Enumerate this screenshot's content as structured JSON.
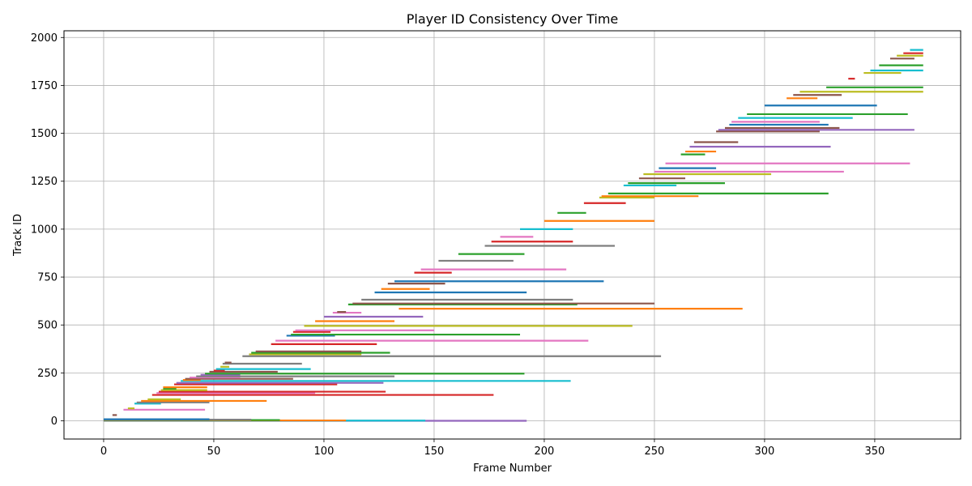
{
  "chart_data": {
    "type": "gantt",
    "title": "Player ID Consistency Over Time",
    "xlabel": "Frame Number",
    "ylabel": "Track ID",
    "xlim": [
      -18,
      389
    ],
    "ylim": [
      -95,
      2035
    ],
    "xticks": [
      0,
      50,
      100,
      150,
      200,
      250,
      300,
      350
    ],
    "yticks": [
      0,
      250,
      500,
      750,
      1000,
      1250,
      1500,
      1750,
      2000
    ],
    "grid": true,
    "colors": [
      "#1f77b4",
      "#ff7f0e",
      "#2ca02c",
      "#d62728",
      "#9467bd",
      "#8c564b",
      "#e377c2",
      "#7f7f7f",
      "#bcbd22",
      "#17becf"
    ],
    "segments": [
      {
        "id": 0,
        "start": 0,
        "end": 192,
        "color": "#9467bd"
      },
      {
        "id": 1,
        "start": 0,
        "end": 146,
        "color": "#17becf"
      },
      {
        "id": 2,
        "start": 0,
        "end": 110,
        "color": "#ff7f0e"
      },
      {
        "id": 4,
        "start": 0,
        "end": 80,
        "color": "#2ca02c"
      },
      {
        "id": 6,
        "start": 0,
        "end": 67,
        "color": "#7f7f7f"
      },
      {
        "id": 8,
        "start": 0,
        "end": 48,
        "color": "#1f77b4"
      },
      {
        "id": 30,
        "start": 4,
        "end": 6,
        "color": "#8c564b"
      },
      {
        "id": 58,
        "start": 9,
        "end": 46,
        "color": "#e377c2"
      },
      {
        "id": 65,
        "start": 11,
        "end": 14,
        "color": "#bcbd22"
      },
      {
        "id": 90,
        "start": 14,
        "end": 26,
        "color": "#17becf"
      },
      {
        "id": 96,
        "start": 15,
        "end": 48,
        "color": "#7f7f7f"
      },
      {
        "id": 104,
        "start": 17,
        "end": 74,
        "color": "#ff7f0e"
      },
      {
        "id": 112,
        "start": 20,
        "end": 35,
        "color": "#bcbd22"
      },
      {
        "id": 135,
        "start": 22,
        "end": 177,
        "color": "#d62728"
      },
      {
        "id": 145,
        "start": 24,
        "end": 96,
        "color": "#e377c2"
      },
      {
        "id": 152,
        "start": 25,
        "end": 128,
        "color": "#d62728"
      },
      {
        "id": 160,
        "start": 26,
        "end": 47,
        "color": "#bcbd22"
      },
      {
        "id": 168,
        "start": 27,
        "end": 33,
        "color": "#2ca02c"
      },
      {
        "id": 175,
        "start": 27,
        "end": 47,
        "color": "#ff7f0e"
      },
      {
        "id": 190,
        "start": 32,
        "end": 106,
        "color": "#d62728"
      },
      {
        "id": 198,
        "start": 33,
        "end": 127,
        "color": "#9467bd"
      },
      {
        "id": 208,
        "start": 35,
        "end": 212,
        "color": "#17becf"
      },
      {
        "id": 213,
        "start": 36,
        "end": 44,
        "color": "#ff7f0e"
      },
      {
        "id": 219,
        "start": 37,
        "end": 86,
        "color": "#8c564b"
      },
      {
        "id": 226,
        "start": 39,
        "end": 62,
        "color": "#e377c2"
      },
      {
        "id": 232,
        "start": 42,
        "end": 132,
        "color": "#7f7f7f"
      },
      {
        "id": 240,
        "start": 44,
        "end": 62,
        "color": "#9467bd"
      },
      {
        "id": 246,
        "start": 46,
        "end": 191,
        "color": "#2ca02c"
      },
      {
        "id": 256,
        "start": 48,
        "end": 79,
        "color": "#8c564b"
      },
      {
        "id": 262,
        "start": 50,
        "end": 55,
        "color": "#d62728"
      },
      {
        "id": 270,
        "start": 51,
        "end": 94,
        "color": "#17becf"
      },
      {
        "id": 282,
        "start": 53,
        "end": 57,
        "color": "#bcbd22"
      },
      {
        "id": 298,
        "start": 54,
        "end": 90,
        "color": "#7f7f7f"
      },
      {
        "id": 304,
        "start": 55,
        "end": 58,
        "color": "#8c564b"
      },
      {
        "id": 337,
        "start": 63,
        "end": 253,
        "color": "#7f7f7f"
      },
      {
        "id": 347,
        "start": 66,
        "end": 117,
        "color": "#bcbd22"
      },
      {
        "id": 355,
        "start": 67,
        "end": 130,
        "color": "#2ca02c"
      },
      {
        "id": 362,
        "start": 69,
        "end": 117,
        "color": "#8c564b"
      },
      {
        "id": 400,
        "start": 76,
        "end": 124,
        "color": "#d62728"
      },
      {
        "id": 418,
        "start": 78,
        "end": 220,
        "color": "#e377c2"
      },
      {
        "id": 444,
        "start": 83,
        "end": 105,
        "color": "#1f77b4"
      },
      {
        "id": 450,
        "start": 85,
        "end": 189,
        "color": "#2ca02c"
      },
      {
        "id": 464,
        "start": 86,
        "end": 103,
        "color": "#d62728"
      },
      {
        "id": 472,
        "start": 87,
        "end": 150,
        "color": "#e377c2"
      },
      {
        "id": 495,
        "start": 91,
        "end": 240,
        "color": "#bcbd22"
      },
      {
        "id": 520,
        "start": 96,
        "end": 132,
        "color": "#ff7f0e"
      },
      {
        "id": 543,
        "start": 100,
        "end": 145,
        "color": "#9467bd"
      },
      {
        "id": 564,
        "start": 104,
        "end": 117,
        "color": "#e377c2"
      },
      {
        "id": 568,
        "start": 106,
        "end": 110,
        "color": "#8c564b"
      },
      {
        "id": 585,
        "start": 134,
        "end": 290,
        "color": "#ff7f0e"
      },
      {
        "id": 607,
        "start": 111,
        "end": 215,
        "color": "#2ca02c"
      },
      {
        "id": 612,
        "start": 113,
        "end": 250,
        "color": "#8c564b"
      },
      {
        "id": 632,
        "start": 117,
        "end": 213,
        "color": "#7f7f7f"
      },
      {
        "id": 670,
        "start": 123,
        "end": 192,
        "color": "#1f77b4"
      },
      {
        "id": 688,
        "start": 126,
        "end": 148,
        "color": "#ff7f0e"
      },
      {
        "id": 716,
        "start": 129,
        "end": 155,
        "color": "#8c564b"
      },
      {
        "id": 728,
        "start": 132,
        "end": 227,
        "color": "#1f77b4"
      },
      {
        "id": 773,
        "start": 141,
        "end": 158,
        "color": "#d62728"
      },
      {
        "id": 790,
        "start": 144,
        "end": 210,
        "color": "#e377c2"
      },
      {
        "id": 835,
        "start": 152,
        "end": 186,
        "color": "#7f7f7f"
      },
      {
        "id": 870,
        "start": 161,
        "end": 191,
        "color": "#2ca02c"
      },
      {
        "id": 913,
        "start": 173,
        "end": 232,
        "color": "#7f7f7f"
      },
      {
        "id": 935,
        "start": 176,
        "end": 213,
        "color": "#d62728"
      },
      {
        "id": 960,
        "start": 180,
        "end": 195,
        "color": "#e377c2"
      },
      {
        "id": 1000,
        "start": 189,
        "end": 213,
        "color": "#17becf"
      },
      {
        "id": 1043,
        "start": 200,
        "end": 250,
        "color": "#ff7f0e"
      },
      {
        "id": 1085,
        "start": 206,
        "end": 219,
        "color": "#2ca02c"
      },
      {
        "id": 1136,
        "start": 218,
        "end": 237,
        "color": "#d62728"
      },
      {
        "id": 1165,
        "start": 225,
        "end": 250,
        "color": "#bcbd22"
      },
      {
        "id": 1172,
        "start": 226,
        "end": 270,
        "color": "#ff7f0e"
      },
      {
        "id": 1186,
        "start": 229,
        "end": 329,
        "color": "#2ca02c"
      },
      {
        "id": 1228,
        "start": 236,
        "end": 260,
        "color": "#17becf"
      },
      {
        "id": 1240,
        "start": 238,
        "end": 282,
        "color": "#2ca02c"
      },
      {
        "id": 1265,
        "start": 243,
        "end": 264,
        "color": "#8c564b"
      },
      {
        "id": 1287,
        "start": 245,
        "end": 303,
        "color": "#bcbd22"
      },
      {
        "id": 1300,
        "start": 250,
        "end": 336,
        "color": "#e377c2"
      },
      {
        "id": 1318,
        "start": 252,
        "end": 278,
        "color": "#1f77b4"
      },
      {
        "id": 1343,
        "start": 255,
        "end": 366,
        "color": "#e377c2"
      },
      {
        "id": 1390,
        "start": 262,
        "end": 273,
        "color": "#2ca02c"
      },
      {
        "id": 1405,
        "start": 264,
        "end": 278,
        "color": "#ff7f0e"
      },
      {
        "id": 1430,
        "start": 266,
        "end": 330,
        "color": "#9467bd"
      },
      {
        "id": 1454,
        "start": 268,
        "end": 288,
        "color": "#8c564b"
      },
      {
        "id": 1510,
        "start": 278,
        "end": 325,
        "color": "#8c564b"
      },
      {
        "id": 1518,
        "start": 279,
        "end": 368,
        "color": "#9467bd"
      },
      {
        "id": 1528,
        "start": 282,
        "end": 334,
        "color": "#8c564b"
      },
      {
        "id": 1545,
        "start": 284,
        "end": 329,
        "color": "#1f77b4"
      },
      {
        "id": 1560,
        "start": 285,
        "end": 325,
        "color": "#e377c2"
      },
      {
        "id": 1580,
        "start": 288,
        "end": 340,
        "color": "#17becf"
      },
      {
        "id": 1600,
        "start": 292,
        "end": 365,
        "color": "#2ca02c"
      },
      {
        "id": 1645,
        "start": 300,
        "end": 351,
        "color": "#1f77b4"
      },
      {
        "id": 1683,
        "start": 310,
        "end": 324,
        "color": "#ff7f0e"
      },
      {
        "id": 1700,
        "start": 313,
        "end": 335,
        "color": "#8c564b"
      },
      {
        "id": 1717,
        "start": 316,
        "end": 372,
        "color": "#bcbd22"
      },
      {
        "id": 1740,
        "start": 328,
        "end": 372,
        "color": "#2ca02c"
      },
      {
        "id": 1785,
        "start": 338,
        "end": 341,
        "color": "#d62728"
      },
      {
        "id": 1815,
        "start": 345,
        "end": 362,
        "color": "#bcbd22"
      },
      {
        "id": 1828,
        "start": 348,
        "end": 372,
        "color": "#17becf"
      },
      {
        "id": 1855,
        "start": 352,
        "end": 372,
        "color": "#2ca02c"
      },
      {
        "id": 1890,
        "start": 357,
        "end": 368,
        "color": "#8c564b"
      },
      {
        "id": 1905,
        "start": 360,
        "end": 372,
        "color": "#bcbd22"
      },
      {
        "id": 1918,
        "start": 363,
        "end": 372,
        "color": "#d62728"
      },
      {
        "id": 1935,
        "start": 366,
        "end": 372,
        "color": "#17becf"
      }
    ]
  }
}
